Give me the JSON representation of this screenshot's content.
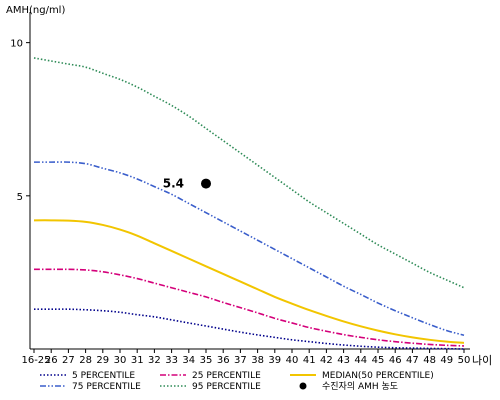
{
  "chart_data": {
    "type": "line",
    "ylabel": "AMH(ng/ml)",
    "xlabel": "나이",
    "x": [
      "16-25",
      "26",
      "27",
      "28",
      "29",
      "30",
      "31",
      "32",
      "33",
      "34",
      "35",
      "36",
      "37",
      "38",
      "39",
      "40",
      "41",
      "42",
      "43",
      "44",
      "45",
      "46",
      "47",
      "48",
      "49",
      "50"
    ],
    "ylim": [
      0,
      11
    ],
    "yticks": [
      "5",
      "10"
    ],
    "grid": false,
    "legend_position": "bottom",
    "series": [
      {
        "name": "5 PERCENTILE",
        "color": "#00008b",
        "dash": "dotted",
        "values": [
          1.3,
          1.3,
          1.3,
          1.28,
          1.25,
          1.2,
          1.12,
          1.05,
          0.95,
          0.85,
          0.75,
          0.65,
          0.55,
          0.46,
          0.38,
          0.3,
          0.24,
          0.18,
          0.13,
          0.09,
          0.06,
          0.04,
          0.03,
          0.02,
          0.01,
          0.0
        ]
      },
      {
        "name": "25 PERCENTILE",
        "color": "#d4007a",
        "dash": "dashdot",
        "values": [
          2.6,
          2.6,
          2.6,
          2.58,
          2.52,
          2.42,
          2.3,
          2.15,
          2.0,
          1.85,
          1.7,
          1.52,
          1.35,
          1.18,
          1.0,
          0.85,
          0.7,
          0.58,
          0.47,
          0.38,
          0.3,
          0.24,
          0.19,
          0.15,
          0.12,
          0.1
        ]
      },
      {
        "name": "MEDIAN(50 PERCENTILE)",
        "color": "#f2c500",
        "dash": "solid",
        "values": [
          4.2,
          4.2,
          4.19,
          4.15,
          4.05,
          3.9,
          3.7,
          3.45,
          3.2,
          2.95,
          2.7,
          2.45,
          2.2,
          1.95,
          1.7,
          1.48,
          1.27,
          1.08,
          0.9,
          0.74,
          0.6,
          0.48,
          0.38,
          0.3,
          0.24,
          0.2
        ]
      },
      {
        "name": "75 PERCENTILE",
        "color": "#3a5ecb",
        "dash": "dashdotdot",
        "values": [
          6.1,
          6.1,
          6.1,
          6.05,
          5.9,
          5.75,
          5.55,
          5.3,
          5.05,
          4.75,
          4.45,
          4.15,
          3.85,
          3.55,
          3.25,
          2.95,
          2.65,
          2.35,
          2.05,
          1.78,
          1.5,
          1.25,
          1.02,
          0.8,
          0.6,
          0.45
        ]
      },
      {
        "name": "95 PERCENTILE",
        "color": "#2e8b57",
        "dash": "dotted",
        "values": [
          9.5,
          9.4,
          9.3,
          9.2,
          9.0,
          8.8,
          8.55,
          8.25,
          7.95,
          7.6,
          7.2,
          6.8,
          6.4,
          6.0,
          5.6,
          5.2,
          4.8,
          4.45,
          4.1,
          3.75,
          3.4,
          3.1,
          2.8,
          2.5,
          2.25,
          2.0
        ]
      }
    ],
    "point": {
      "name": "수진자의 AMH 농도",
      "x": "35",
      "y": 5.4,
      "label": "5.4"
    },
    "legend_order": [
      "5 PERCENTILE",
      "25 PERCENTILE",
      "MEDIAN(50 PERCENTILE)",
      "75 PERCENTILE",
      "95 PERCENTILE",
      "수진자의 AMH 농도"
    ]
  }
}
